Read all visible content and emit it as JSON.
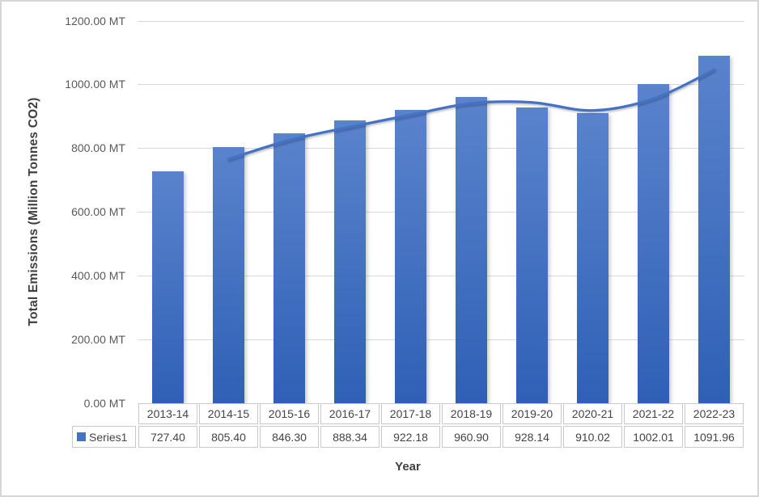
{
  "chart_data": {
    "type": "bar",
    "categories": [
      "2013-14",
      "2014-15",
      "2015-16",
      "2016-17",
      "2017-18",
      "2018-19",
      "2019-20",
      "2020-21",
      "2021-22",
      "2022-23"
    ],
    "series": [
      {
        "name": "Series1",
        "type": "bar",
        "values": [
          727.4,
          805.4,
          846.3,
          888.34,
          922.18,
          960.9,
          928.14,
          910.02,
          1002.01,
          1091.96
        ]
      },
      {
        "name": "2-period moving average trendline",
        "type": "line",
        "start_index": 1,
        "values": [
          766.4,
          825.85,
          867.32,
          905.26,
          941.54,
          944.52,
          919.08,
          956.02,
          1046.99
        ]
      }
    ],
    "title": "",
    "ylabel": "Total Emissions (Million Tonnes CO2)",
    "xlabel": "Year",
    "ylim": [
      0,
      1200
    ],
    "ytick_values": [
      0,
      200,
      400,
      600,
      800,
      1000,
      1200
    ],
    "yticks": [
      "0.00 MT",
      "200.00 MT",
      "400.00 MT",
      "600.00 MT",
      "800.00 MT",
      "1000.00 MT",
      "1200.00 MT"
    ],
    "grid": true,
    "legend_position": "data-table-left"
  },
  "data_table": {
    "legend_label": "Series1",
    "columns": [
      "2013-14",
      "2014-15",
      "2015-16",
      "2016-17",
      "2017-18",
      "2018-19",
      "2019-20",
      "2020-21",
      "2021-22",
      "2022-23"
    ],
    "values": [
      "727.40",
      "805.40",
      "846.30",
      "888.34",
      "922.18",
      "960.90",
      "928.14",
      "910.02",
      "1002.01",
      "1091.96"
    ]
  },
  "colors": {
    "bar_top": "#5a83cc",
    "bar_bottom": "#2f60b6",
    "trendline": "#4472c4",
    "legend_square": "#4472c4",
    "gridline": "#d9d9d9",
    "axis_text": "#595959",
    "table_text": "#444444",
    "table_border": "#c9c9c9",
    "frame_border": "#d6d6d6"
  }
}
